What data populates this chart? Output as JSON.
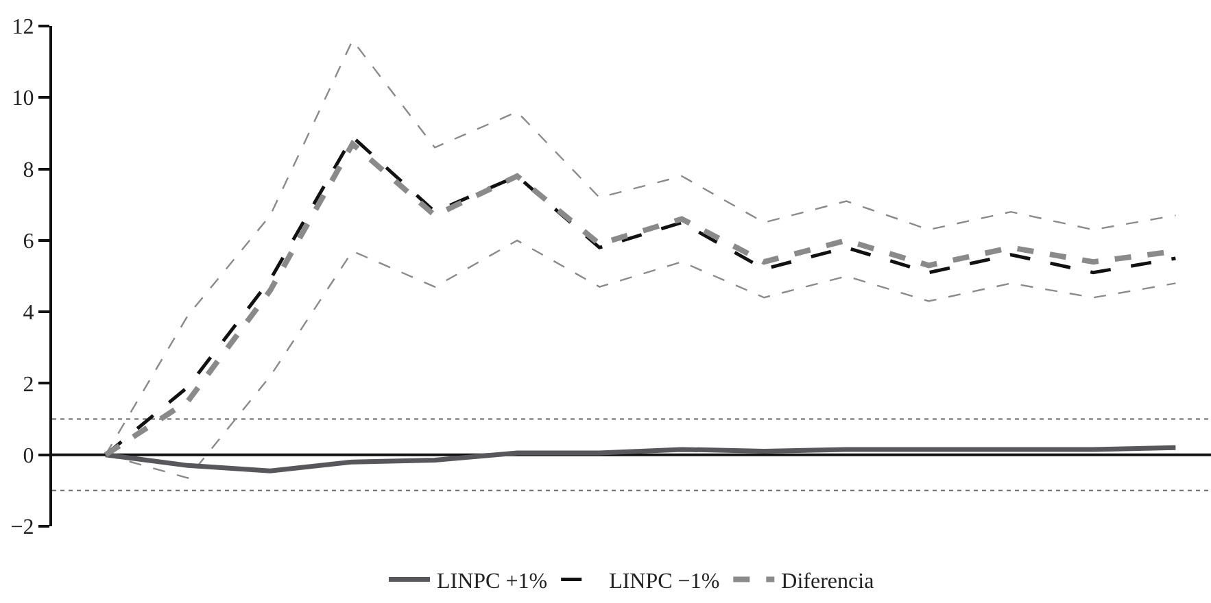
{
  "chart_data": {
    "type": "line",
    "categories": [
      null,
      null,
      null,
      null,
      null,
      null,
      null,
      null,
      null,
      null,
      null,
      null,
      null,
      null
    ],
    "series": [
      {
        "color": "#8a8a8a",
        "line_style": "dashed",
        "values": [
          0,
          3.9,
          6.7,
          11.6,
          8.6,
          9.6,
          7.2,
          7.8,
          6.5,
          7.1,
          6.3,
          6.8,
          6.3,
          6.7
        ]
      },
      {
        "color": "#8a8a8a",
        "line_style": "dashed",
        "values": [
          0,
          -0.65,
          2.2,
          5.7,
          4.7,
          6.0,
          4.7,
          5.4,
          4.4,
          5.0,
          4.3,
          4.8,
          4.4,
          4.8
        ]
      },
      {
        "name": "LINPC +1%",
        "color": "#58585c",
        "line_style": "solid",
        "values": [
          0,
          -0.3,
          -0.45,
          -0.2,
          -0.15,
          0.05,
          0.05,
          0.15,
          0.1,
          0.15,
          0.15,
          0.15,
          0.15,
          0.2
        ]
      },
      {
        "name": "LINPC −1%",
        "color": "#111111",
        "line_style": "dashed",
        "values": [
          0,
          1.9,
          4.9,
          8.9,
          6.8,
          7.8,
          5.8,
          6.5,
          5.2,
          5.8,
          5.1,
          5.6,
          5.1,
          5.5
        ]
      },
      {
        "name": "Diferencia",
        "color": "#8a8a8a",
        "line_style": "dotted",
        "values": [
          0,
          1.5,
          4.6,
          8.7,
          6.7,
          7.8,
          5.9,
          6.6,
          5.4,
          6.0,
          5.3,
          5.8,
          5.4,
          5.7
        ]
      }
    ],
    "ylim": [
      -2,
      12
    ],
    "yticks": [
      {
        "value": -2,
        "label": "−2"
      },
      0,
      2,
      4,
      6,
      8,
      10,
      12
    ],
    "ref_lines": [
      {
        "axis": "y",
        "value": 0,
        "color": "#111111",
        "line_style": "solid"
      },
      {
        "axis": "y",
        "value": 1,
        "color": "#666666",
        "line_style": "dotted"
      },
      {
        "axis": "y",
        "value": -1,
        "color": "#666666",
        "line_style": "dotted"
      }
    ],
    "tick_labels": "y",
    "legend": "bottom",
    "marker": "none"
  }
}
